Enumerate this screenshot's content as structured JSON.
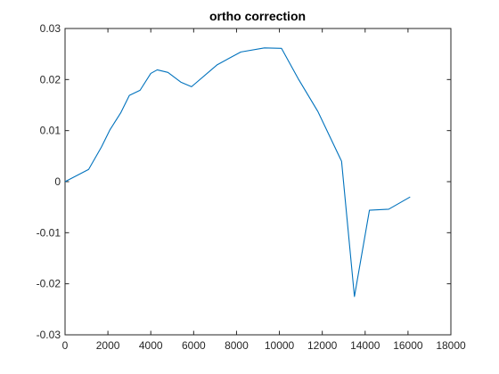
{
  "colors": {
    "line": "#0072BD",
    "axis": "#262626",
    "background": "#ffffff"
  },
  "chart_data": {
    "type": "line",
    "title": "ortho correction",
    "xlabel": "",
    "ylabel": "",
    "xlim": [
      0,
      18000
    ],
    "ylim": [
      -0.03,
      0.03
    ],
    "grid": false,
    "x_ticks": [
      0,
      2000,
      4000,
      6000,
      8000,
      10000,
      12000,
      14000,
      16000,
      18000
    ],
    "x_tick_labels": [
      "0",
      "2000",
      "4000",
      "6000",
      "8000",
      "10000",
      "12000",
      "14000",
      "16000",
      "18000"
    ],
    "y_ticks": [
      -0.03,
      -0.02,
      -0.01,
      0,
      0.01,
      0.02,
      0.03
    ],
    "y_tick_labels": [
      "-0.03",
      "-0.02",
      "-0.01",
      "0",
      "0.01",
      "0.02",
      "0.03"
    ],
    "series": [
      {
        "x": [
          0,
          1100,
          1700,
          2100,
          2600,
          3000,
          3500,
          4000,
          4300,
          4800,
          5400,
          5900,
          7100,
          8200,
          9300,
          10100,
          10900,
          11800,
          12900,
          13500,
          14200,
          15100,
          16100
        ],
        "y": [
          0.0,
          0.0024,
          0.0068,
          0.0102,
          0.0135,
          0.0169,
          0.0179,
          0.0212,
          0.0219,
          0.0214,
          0.0195,
          0.0186,
          0.0229,
          0.0254,
          0.0262,
          0.0261,
          0.02,
          0.0137,
          0.004,
          -0.0225,
          -0.0056,
          -0.0054,
          -0.003
        ]
      }
    ]
  }
}
